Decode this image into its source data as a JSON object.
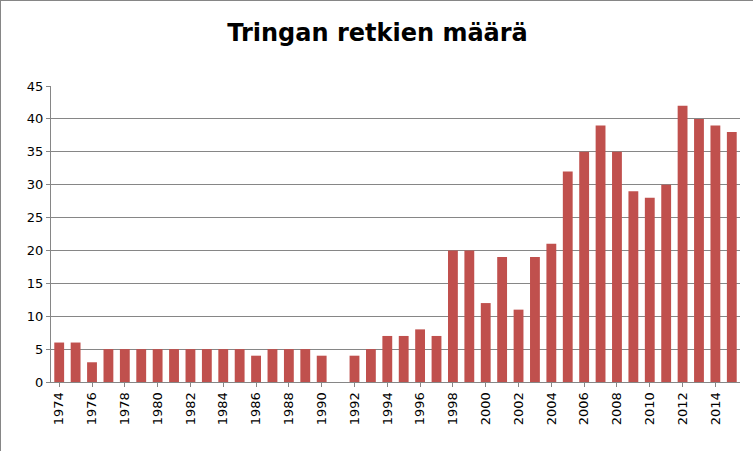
{
  "chart_data": {
    "type": "bar",
    "title": "Tringan retkien määrä",
    "categories": [
      "1974",
      null,
      "1976",
      null,
      "1978",
      null,
      "1980",
      null,
      "1982",
      null,
      "1984",
      null,
      "1986",
      null,
      "1988",
      null,
      "1990",
      null,
      "1992",
      null,
      "1994",
      null,
      "1996",
      null,
      "1998",
      null,
      "2000",
      null,
      "2002",
      null,
      "2004",
      null,
      "2006",
      null,
      "2008",
      null,
      "2010",
      null,
      "2012",
      null,
      "2014",
      null
    ],
    "values": [
      6,
      6,
      3,
      5,
      5,
      5,
      5,
      5,
      5,
      5,
      5,
      5,
      4,
      5,
      5,
      5,
      4,
      0,
      4,
      5,
      7,
      7,
      8,
      7,
      20,
      20,
      12,
      19,
      11,
      19,
      21,
      32,
      35,
      39,
      35,
      29,
      28,
      30,
      42,
      40,
      39,
      38
    ],
    "color": "#c0504d",
    "ylim": [
      0,
      45
    ],
    "yticks": [
      0,
      5,
      10,
      15,
      20,
      25,
      30,
      35,
      40,
      45
    ],
    "grid": true
  }
}
